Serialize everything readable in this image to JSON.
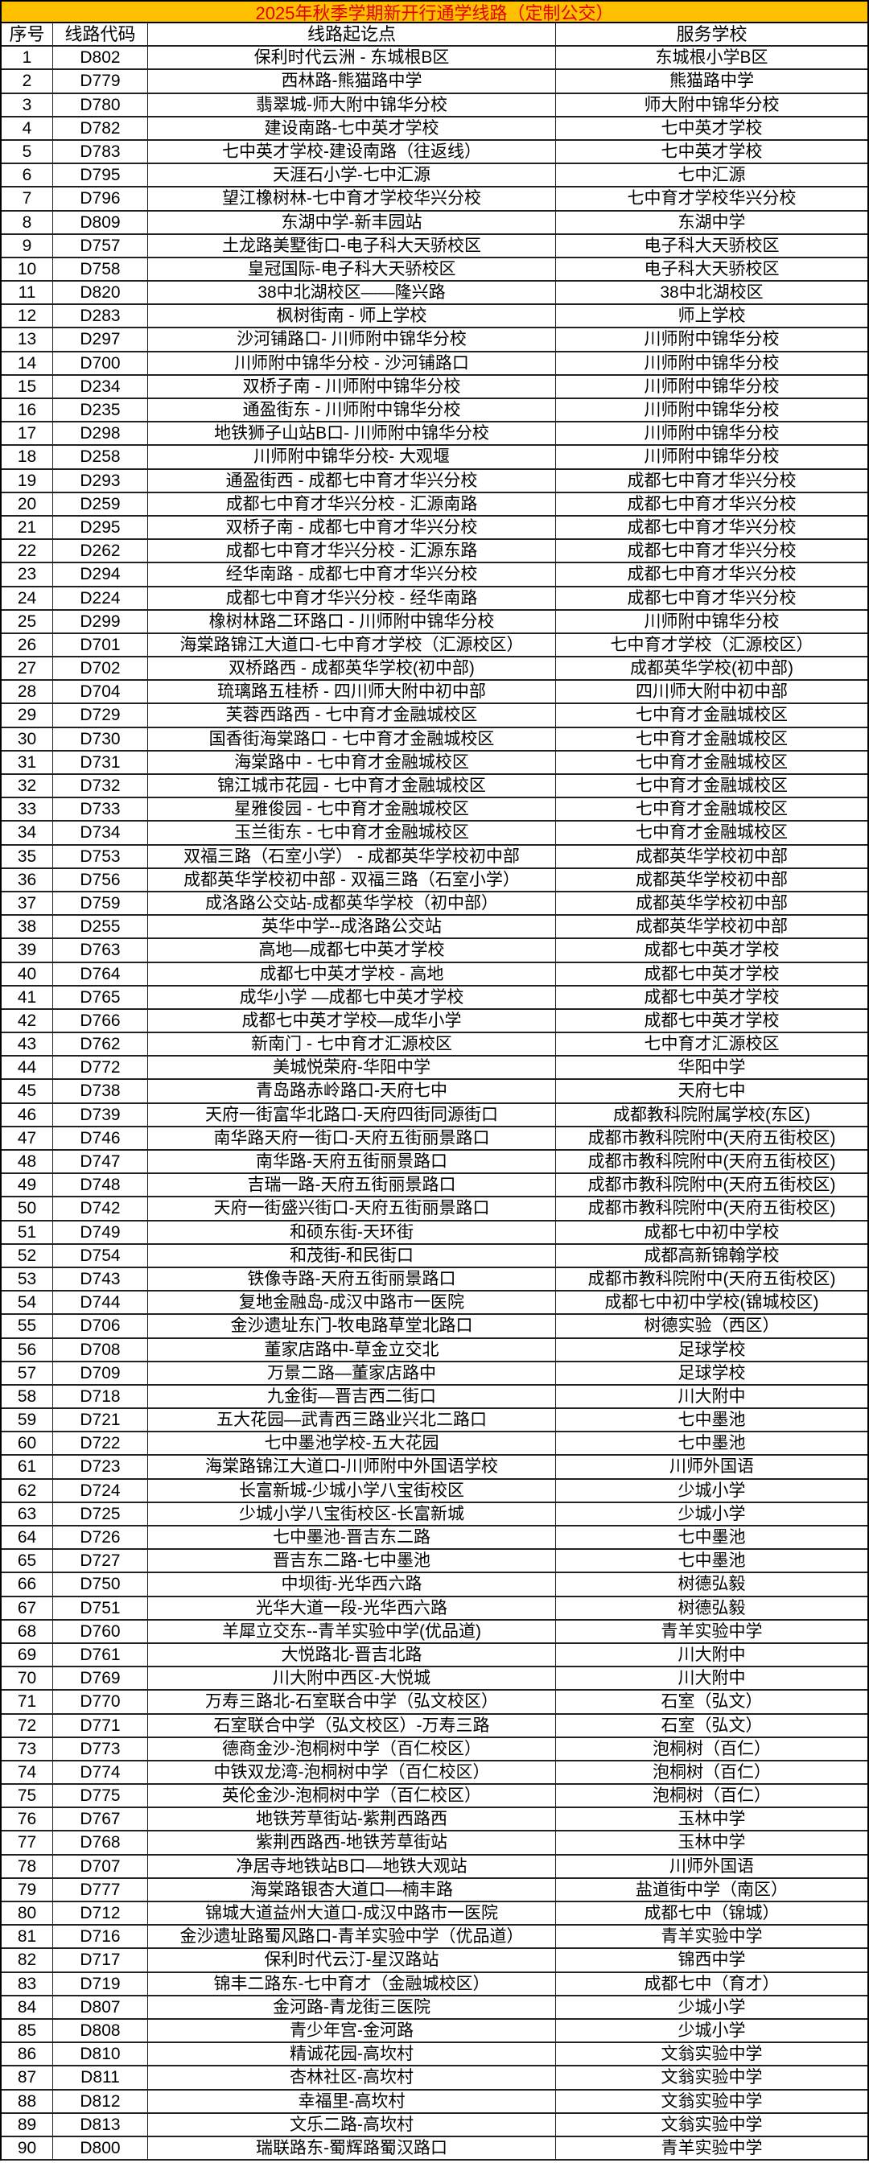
{
  "title": "2025年秋季学期新开行通学线路（定制公交）",
  "headers": [
    "序号",
    "线路代码",
    "线路起讫点",
    "服务学校"
  ],
  "accent_colors": {
    "title_bg": "#FFC000",
    "title_text": "#E00000"
  },
  "rows": [
    [
      "1",
      "D802",
      "保利时代云洲 - 东城根B区",
      "东城根小学B区"
    ],
    [
      "2",
      "D779",
      "西林路-熊猫路中学",
      "熊猫路中学"
    ],
    [
      "3",
      "D780",
      "翡翠城-师大附中锦华分校",
      "师大附中锦华分校"
    ],
    [
      "4",
      "D782",
      "建设南路-七中英才学校",
      "七中英才学校"
    ],
    [
      "5",
      "D783",
      "七中英才学校-建设南路（往返线）",
      "七中英才学校"
    ],
    [
      "6",
      "D795",
      "天涯石小学-七中汇源",
      "七中汇源"
    ],
    [
      "7",
      "D796",
      "望江橡树林-七中育才学校华兴分校",
      "七中育才学校华兴分校"
    ],
    [
      "8",
      "D809",
      "东湖中学-新丰园站",
      "东湖中学"
    ],
    [
      "9",
      "D757",
      "土龙路美墅街口-电子科大天骄校区",
      "电子科大天骄校区"
    ],
    [
      "10",
      "D758",
      "皇冠国际-电子科大天骄校区",
      "电子科大天骄校区"
    ],
    [
      "11",
      "D820",
      "38中北湖校区——隆兴路",
      "38中北湖校区"
    ],
    [
      "12",
      "D283",
      "枫树街南 - 师上学校",
      "师上学校"
    ],
    [
      "13",
      "D297",
      "沙河铺路口- 川师附中锦华分校",
      "川师附中锦华分校"
    ],
    [
      "14",
      "D700",
      "川师附中锦华分校 - 沙河铺路口",
      "川师附中锦华分校"
    ],
    [
      "15",
      "D234",
      "双桥子南 - 川师附中锦华分校",
      "川师附中锦华分校"
    ],
    [
      "16",
      "D235",
      "通盈街东 - 川师附中锦华分校",
      "川师附中锦华分校"
    ],
    [
      "17",
      "D298",
      "地铁狮子山站B口- 川师附中锦华分校",
      "川师附中锦华分校"
    ],
    [
      "18",
      "D258",
      "川师附中锦华分校- 大观堰",
      "川师附中锦华分校"
    ],
    [
      "19",
      "D293",
      "通盈街西 - 成都七中育才华兴分校",
      "成都七中育才华兴分校"
    ],
    [
      "20",
      "D259",
      "成都七中育才华兴分校 - 汇源南路",
      "成都七中育才华兴分校"
    ],
    [
      "21",
      "D295",
      "双桥子南 - 成都七中育才华兴分校",
      "成都七中育才华兴分校"
    ],
    [
      "22",
      "D262",
      "成都七中育才华兴分校 - 汇源东路",
      "成都七中育才华兴分校"
    ],
    [
      "23",
      "D294",
      "经华南路 - 成都七中育才华兴分校",
      "成都七中育才华兴分校"
    ],
    [
      "24",
      "D224",
      "成都七中育才华兴分校 - 经华南路",
      "成都七中育才华兴分校"
    ],
    [
      "25",
      "D299",
      "橡树林路二环路口 - 川师附中锦华分校",
      "川师附中锦华分校"
    ],
    [
      "26",
      "D701",
      "海棠路锦江大道口-七中育才学校（汇源校区）",
      "七中育才学校（汇源校区）"
    ],
    [
      "27",
      "D702",
      "双桥路西 - 成都英华学校(初中部)",
      "成都英华学校(初中部)"
    ],
    [
      "28",
      "D704",
      "琉璃路五桂桥 - 四川师大附中初中部",
      "四川师大附中初中部"
    ],
    [
      "29",
      "D729",
      "芙蓉西路西 - 七中育才金融城校区",
      "七中育才金融城校区"
    ],
    [
      "30",
      "D730",
      "国香街海棠路口 - 七中育才金融城校区",
      "七中育才金融城校区"
    ],
    [
      "31",
      "D731",
      "海棠路中 - 七中育才金融城校区",
      "七中育才金融城校区"
    ],
    [
      "32",
      "D732",
      "锦江城市花园 - 七中育才金融城校区",
      "七中育才金融城校区"
    ],
    [
      "33",
      "D733",
      "星雅俊园 - 七中育才金融城校区",
      "七中育才金融城校区"
    ],
    [
      "34",
      "D734",
      "玉兰街东 - 七中育才金融城校区",
      "七中育才金融城校区"
    ],
    [
      "35",
      "D753",
      "双福三路（石室小学） - 成都英华学校初中部",
      "成都英华学校初中部"
    ],
    [
      "36",
      "D756",
      "成都英华学校初中部 - 双福三路（石室小学）",
      "成都英华学校初中部"
    ],
    [
      "37",
      "D759",
      "成洛路公交站-成都英华学校（初中部）",
      "成都英华学校初中部"
    ],
    [
      "38",
      "D255",
      "英华中学--成洛路公交站",
      "成都英华学校初中部"
    ],
    [
      "39",
      "D763",
      "高地—成都七中英才学校",
      "成都七中英才学校"
    ],
    [
      "40",
      "D764",
      "成都七中英才学校 - 高地",
      "成都七中英才学校"
    ],
    [
      "41",
      "D765",
      "成华小学 —成都七中英才学校",
      "成都七中英才学校"
    ],
    [
      "42",
      "D766",
      "成都七中英才学校—成华小学",
      "成都七中英才学校"
    ],
    [
      "43",
      "D762",
      "新南门 - 七中育才汇源校区",
      "七中育才汇源校区"
    ],
    [
      "44",
      "D772",
      "美城悦荣府-华阳中学",
      "华阳中学"
    ],
    [
      "45",
      "D738",
      "青岛路赤岭路口-天府七中",
      "天府七中"
    ],
    [
      "46",
      "D739",
      "天府一街富华北路口-天府四街同源街口",
      "成都教科院附属学校(东区)"
    ],
    [
      "47",
      "D746",
      "南华路天府一街口-天府五街丽景路口",
      "成都市教科院附中(天府五街校区)"
    ],
    [
      "48",
      "D747",
      "南华路-天府五街丽景路口",
      "成都市教科院附中(天府五街校区)"
    ],
    [
      "49",
      "D748",
      "吉瑞一路-天府五街丽景路口",
      "成都市教科院附中(天府五街校区)"
    ],
    [
      "50",
      "D742",
      "天府一街盛兴街口-天府五街丽景路口",
      "成都市教科院附中(天府五街校区)"
    ],
    [
      "51",
      "D749",
      "和硕东街-天环街",
      "成都七中初中学校"
    ],
    [
      "52",
      "D754",
      "和茂街-和民街口",
      "成都高新锦翰学校"
    ],
    [
      "53",
      "D743",
      "铁像寺路-天府五街丽景路口",
      "成都市教科院附中(天府五街校区)"
    ],
    [
      "54",
      "D744",
      "复地金融岛-成汉中路市一医院",
      "成都七中初中学校(锦城校区)"
    ],
    [
      "55",
      "D706",
      "金沙遗址东门-牧电路草堂北路口",
      "树德实验（西区）"
    ],
    [
      "56",
      "D708",
      "董家店路中-草金立交北",
      "足球学校"
    ],
    [
      "57",
      "D709",
      "万景二路—董家店路中",
      "足球学校"
    ],
    [
      "58",
      "D718",
      "九金街—晋吉西二街口",
      "川大附中"
    ],
    [
      "59",
      "D721",
      "五大花园—武青西三路业兴北二路口",
      "七中墨池"
    ],
    [
      "60",
      "D722",
      "七中墨池学校-五大花园",
      "七中墨池"
    ],
    [
      "61",
      "D723",
      "海棠路锦江大道口-川师附中外国语学校",
      "川师外国语"
    ],
    [
      "62",
      "D724",
      "长富新城-少城小学八宝街校区",
      "少城小学"
    ],
    [
      "63",
      "D725",
      "少城小学八宝街校区-长富新城",
      "少城小学"
    ],
    [
      "64",
      "D726",
      "七中墨池-晋吉东二路",
      "七中墨池"
    ],
    [
      "65",
      "D727",
      "晋吉东二路-七中墨池",
      "七中墨池"
    ],
    [
      "66",
      "D750",
      "中坝街-光华西六路",
      "树德弘毅"
    ],
    [
      "67",
      "D751",
      "光华大道一段-光华西六路",
      "树德弘毅"
    ],
    [
      "68",
      "D760",
      "羊犀立交东--青羊实验中学(优品道)",
      "青羊实验中学"
    ],
    [
      "69",
      "D761",
      "大悦路北-晋吉北路",
      "川大附中"
    ],
    [
      "70",
      "D769",
      "川大附中西区-大悦城",
      "川大附中"
    ],
    [
      "71",
      "D770",
      "万寿三路北-石室联合中学（弘文校区）",
      "石室（弘文）"
    ],
    [
      "72",
      "D771",
      "石室联合中学（弘文校区）-万寿三路",
      "石室（弘文）"
    ],
    [
      "73",
      "D773",
      "德商金沙-泡桐树中学（百仁校区）",
      "泡桐树（百仁）"
    ],
    [
      "74",
      "D774",
      "中铁双龙湾-泡桐树中学（百仁校区）",
      "泡桐树（百仁）"
    ],
    [
      "75",
      "D775",
      "英伦金沙-泡桐树中学（百仁校区）",
      "泡桐树（百仁）"
    ],
    [
      "76",
      "D767",
      "地铁芳草街站-紫荆西路西",
      "玉林中学"
    ],
    [
      "77",
      "D768",
      "紫荆西路西-地铁芳草街站",
      "玉林中学"
    ],
    [
      "78",
      "D707",
      "净居寺地铁站B口—地铁大观站",
      "川师外国语"
    ],
    [
      "79",
      "D777",
      "海棠路银杏大道口—楠丰路",
      "盐道街中学（南区）"
    ],
    [
      "80",
      "D712",
      "锦城大道益州大道口-成汉中路市一医院",
      "成都七中（锦城）"
    ],
    [
      "81",
      "D716",
      "金沙遗址路蜀风路口-青羊实验中学（优品道）",
      "青羊实验中学"
    ],
    [
      "82",
      "D717",
      "保利时代云汀-星汉路站",
      "锦西中学"
    ],
    [
      "83",
      "D719",
      "锦丰二路东-七中育才（金融城校区）",
      "成都七中（育才）"
    ],
    [
      "84",
      "D807",
      "金河路-青龙街三医院",
      "少城小学"
    ],
    [
      "85",
      "D808",
      "青少年宫-金河路",
      "少城小学"
    ],
    [
      "86",
      "D810",
      "精诚花园-高坎村",
      "文翁实验中学"
    ],
    [
      "87",
      "D811",
      "杏林社区-高坎村",
      "文翁实验中学"
    ],
    [
      "88",
      "D812",
      "幸福里-高坎村",
      "文翁实验中学"
    ],
    [
      "89",
      "D813",
      "文乐二路-高坎村",
      "文翁实验中学"
    ],
    [
      "90",
      "D800",
      "瑞联路东-蜀辉路蜀汉路口",
      "青羊实验中学"
    ]
  ]
}
